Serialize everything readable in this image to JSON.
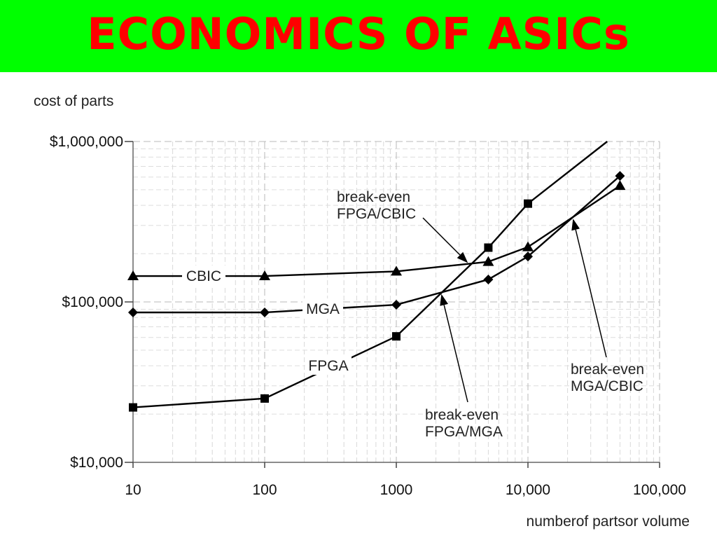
{
  "slide": {
    "title": "ECONOMICS OF ASICs"
  },
  "colors": {
    "title_bar": "#00ff00",
    "title_text": "#ff0000",
    "series": "#000000"
  },
  "chart_data": {
    "type": "line",
    "ylabel": "cost of parts",
    "xlabel": "numberof partsor volume",
    "x_scale": "log",
    "y_scale": "log",
    "xlim": [
      10,
      100000
    ],
    "ylim": [
      10000,
      1000000
    ],
    "x_ticks": [
      {
        "value": 10,
        "label": "10"
      },
      {
        "value": 100,
        "label": "100"
      },
      {
        "value": 1000,
        "label": "1000"
      },
      {
        "value": 10000,
        "label": "10,000"
      },
      {
        "value": 100000,
        "label": "100,000"
      }
    ],
    "y_ticks": [
      {
        "value": 10000,
        "label": "$10,000"
      },
      {
        "value": 100000,
        "label": "$100,000"
      },
      {
        "value": 1000000,
        "label": "$1,000,000"
      }
    ],
    "grid": true,
    "series": [
      {
        "name": "CBIC",
        "marker": "triangle",
        "points": [
          [
            10,
            145000
          ],
          [
            100,
            145000
          ],
          [
            1000,
            155000
          ],
          [
            5000,
            178000
          ],
          [
            10000,
            220000
          ],
          [
            50000,
            530000
          ]
        ]
      },
      {
        "name": "MGA",
        "marker": "diamond",
        "points": [
          [
            10,
            86000
          ],
          [
            100,
            86000
          ],
          [
            1000,
            96000
          ],
          [
            5000,
            138000
          ],
          [
            10000,
            192000
          ],
          [
            50000,
            610000
          ]
        ]
      },
      {
        "name": "FPGA",
        "marker": "square",
        "points": [
          [
            10,
            22000
          ],
          [
            100,
            25000
          ],
          [
            1000,
            61000
          ],
          [
            5000,
            218000
          ],
          [
            10000,
            410000
          ],
          [
            40000,
            1000000
          ]
        ]
      }
    ],
    "annotations": [
      {
        "id": "fpga-cbic",
        "lines": [
          "break-even",
          "FPGA/CBIC"
        ],
        "arrow_to": [
          3500,
          175000
        ]
      },
      {
        "id": "fpga-mga",
        "lines": [
          "break-even",
          "FPGA/MGA"
        ],
        "arrow_to": [
          2200,
          112000
        ]
      },
      {
        "id": "mga-cbic",
        "lines": [
          "break-even",
          "MGA/CBIC"
        ],
        "arrow_to": [
          22000,
          330000
        ]
      }
    ]
  }
}
